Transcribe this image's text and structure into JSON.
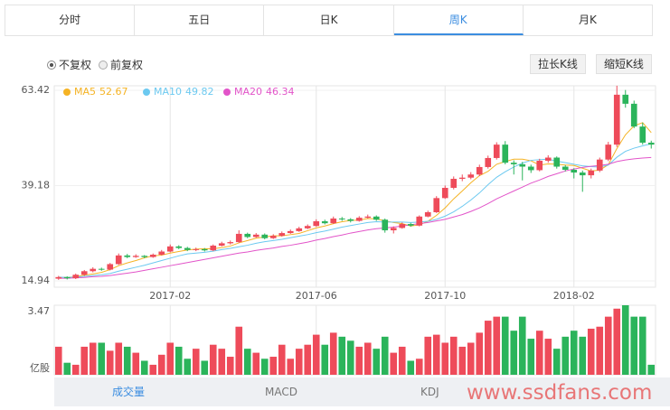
{
  "tabs": [
    "分时",
    "五日",
    "日K",
    "周K",
    "月K"
  ],
  "selected_tab": 3,
  "radios": [
    "不复权",
    "前复权"
  ],
  "selected_radio": 0,
  "buttons": [
    "拉长K线",
    "缩短K线"
  ],
  "bottom_tabs": [
    "成交量",
    "MACD",
    "KDJ"
  ],
  "selected_bottom_tab": 0,
  "watermark": "www.ssdfans.com",
  "chart_data": {
    "type": "candlestick",
    "up_color": "#ee4b5a",
    "down_color": "#2bb45b",
    "ylim": [
      13.33,
      64.57
    ],
    "yticks": [
      14.94,
      39.18,
      63.42
    ],
    "grid": true,
    "categories": [
      null,
      null,
      null,
      null,
      null,
      null,
      null,
      null,
      null,
      null,
      null,
      null,
      null,
      "2017-02",
      null,
      null,
      null,
      null,
      null,
      null,
      null,
      null,
      null,
      null,
      null,
      null,
      null,
      null,
      null,
      null,
      "2017-06",
      null,
      null,
      null,
      null,
      null,
      null,
      null,
      null,
      null,
      null,
      null,
      null,
      null,
      null,
      "2017-10",
      null,
      null,
      null,
      null,
      null,
      null,
      null,
      null,
      null,
      null,
      null,
      null,
      null,
      null,
      "2018-02",
      null,
      null,
      null,
      null,
      null,
      null,
      null,
      null,
      null
    ],
    "candles": [
      [
        15.5,
        16.2,
        15.2,
        15.9
      ],
      [
        15.9,
        16.1,
        15.3,
        15.6
      ],
      [
        15.6,
        16.8,
        15.4,
        16.5
      ],
      [
        16.5,
        17.7,
        16.2,
        17.4
      ],
      [
        17.4,
        18.4,
        17.1,
        18.0
      ],
      [
        18.0,
        18.3,
        17.5,
        17.8
      ],
      [
        17.8,
        19.5,
        17.6,
        19.2
      ],
      [
        19.2,
        21.9,
        19.0,
        21.4
      ],
      [
        21.4,
        21.8,
        20.7,
        21.0
      ],
      [
        21.0,
        21.7,
        20.8,
        21.3
      ],
      [
        21.3,
        21.5,
        20.7,
        21.0
      ],
      [
        21.0,
        21.9,
        20.8,
        21.6
      ],
      [
        21.6,
        22.8,
        21.4,
        22.4
      ],
      [
        22.4,
        24.2,
        22.2,
        23.7
      ],
      [
        23.7,
        24.0,
        23.0,
        23.3
      ],
      [
        23.3,
        23.6,
        22.5,
        22.8
      ],
      [
        22.8,
        23.4,
        22.5,
        23.0
      ],
      [
        23.0,
        23.3,
        22.4,
        22.7
      ],
      [
        22.7,
        24.2,
        22.5,
        23.9
      ],
      [
        23.9,
        24.9,
        23.7,
        24.5
      ],
      [
        24.5,
        25.2,
        24.2,
        24.8
      ],
      [
        24.8,
        27.8,
        24.6,
        26.9
      ],
      [
        26.9,
        27.2,
        25.8,
        26.1
      ],
      [
        26.1,
        27.1,
        25.9,
        26.7
      ],
      [
        26.7,
        27.0,
        25.5,
        25.8
      ],
      [
        25.8,
        26.8,
        25.6,
        26.4
      ],
      [
        26.4,
        27.5,
        26.2,
        27.1
      ],
      [
        27.1,
        28.0,
        26.9,
        27.6
      ],
      [
        27.6,
        28.7,
        27.4,
        28.3
      ],
      [
        28.3,
        29.3,
        28.1,
        28.9
      ],
      [
        28.9,
        30.6,
        28.7,
        30.1
      ],
      [
        30.1,
        30.5,
        29.3,
        29.6
      ],
      [
        29.6,
        31.3,
        29.4,
        30.8
      ],
      [
        30.8,
        31.2,
        30.2,
        30.6
      ],
      [
        30.6,
        30.9,
        29.8,
        30.2
      ],
      [
        30.2,
        31.4,
        30.0,
        31.0
      ],
      [
        31.0,
        31.8,
        30.8,
        31.3
      ],
      [
        31.3,
        31.6,
        30.2,
        30.5
      ],
      [
        30.5,
        30.8,
        27.2,
        27.8
      ],
      [
        27.8,
        28.8,
        27.0,
        28.4
      ],
      [
        28.4,
        29.8,
        28.2,
        29.4
      ],
      [
        29.4,
        29.7,
        28.7,
        29.0
      ],
      [
        29.0,
        31.6,
        28.8,
        31.3
      ],
      [
        31.3,
        32.8,
        31.1,
        32.4
      ],
      [
        32.4,
        36.5,
        32.2,
        36.0
      ],
      [
        36.0,
        39.2,
        35.8,
        38.6
      ],
      [
        38.6,
        41.5,
        38.2,
        40.9
      ],
      [
        40.9,
        42.0,
        40.3,
        41.2
      ],
      [
        41.2,
        42.6,
        40.8,
        42.0
      ],
      [
        42.0,
        44.5,
        41.6,
        43.9
      ],
      [
        43.9,
        46.8,
        43.5,
        46.2
      ],
      [
        46.2,
        50.2,
        45.8,
        49.6
      ],
      [
        49.6,
        50.5,
        44.6,
        45.0
      ],
      [
        45.0,
        45.6,
        42.0,
        44.6
      ],
      [
        44.6,
        45.2,
        40.5,
        44.0
      ],
      [
        44.0,
        44.5,
        42.4,
        43.1
      ],
      [
        43.1,
        46.0,
        42.8,
        45.5
      ],
      [
        45.5,
        46.9,
        45.0,
        46.3
      ],
      [
        46.3,
        46.6,
        43.5,
        44.0
      ],
      [
        44.0,
        44.4,
        42.8,
        43.2
      ],
      [
        43.2,
        43.6,
        41.0,
        42.5
      ],
      [
        42.5,
        43.0,
        37.6,
        41.8
      ],
      [
        41.8,
        43.5,
        41.0,
        43.0
      ],
      [
        43.0,
        46.3,
        42.6,
        45.8
      ],
      [
        45.8,
        50.3,
        45.4,
        49.6
      ],
      [
        49.6,
        64.6,
        49.0,
        62.3
      ],
      [
        62.3,
        63.5,
        59.0,
        60.0
      ],
      [
        60.0,
        60.8,
        53.8,
        54.2
      ],
      [
        54.2,
        55.2,
        49.6,
        50.1
      ],
      [
        50.1,
        50.6,
        48.6,
        49.6
      ]
    ],
    "series": [
      {
        "name": "MA5",
        "color": "#f5b324",
        "values": [
          15.9,
          15.8,
          16.0,
          16.4,
          16.7,
          17.1,
          17.8,
          18.8,
          19.5,
          20.1,
          20.8,
          21.3,
          21.5,
          22.0,
          22.4,
          22.8,
          23.0,
          23.1,
          23.1,
          23.4,
          23.8,
          24.6,
          25.2,
          25.8,
          26.1,
          26.4,
          26.4,
          26.7,
          27.0,
          27.7,
          28.4,
          28.9,
          29.5,
          30.0,
          30.3,
          30.4,
          30.8,
          30.7,
          30.2,
          29.8,
          29.5,
          28.9,
          29.2,
          30.1,
          31.6,
          33.5,
          35.8,
          37.8,
          39.9,
          41.7,
          42.8,
          44.6,
          45.3,
          45.9,
          45.9,
          45.5,
          44.4,
          44.7,
          44.6,
          44.4,
          44.3,
          43.6,
          42.9,
          43.1,
          44.5,
          48.6,
          52.1,
          54.4,
          55.2,
          52.67
        ]
      },
      {
        "name": "MA10",
        "color": "#6cc9f0",
        "values": [
          15.9,
          15.8,
          15.9,
          16.1,
          16.3,
          16.5,
          16.8,
          17.4,
          17.9,
          18.4,
          18.9,
          19.5,
          20.1,
          20.7,
          21.3,
          21.8,
          22.0,
          22.2,
          22.5,
          22.9,
          23.2,
          23.6,
          24.0,
          24.5,
          24.9,
          25.2,
          25.5,
          25.9,
          26.3,
          26.7,
          27.2,
          27.6,
          28.1,
          28.6,
          29.0,
          29.4,
          29.8,
          30.0,
          29.9,
          29.9,
          29.9,
          29.8,
          29.9,
          30.1,
          30.6,
          31.4,
          32.5,
          33.9,
          35.5,
          37.3,
          39.4,
          41.3,
          42.7,
          43.9,
          44.9,
          45.6,
          45.8,
          45.9,
          45.4,
          45.0,
          44.6,
          44.2,
          44.0,
          43.9,
          44.4,
          46.4,
          47.9,
          48.7,
          49.3,
          49.82
        ]
      },
      {
        "name": "MA20",
        "color": "#e254c9",
        "values": [
          15.6,
          15.6,
          15.7,
          15.8,
          16.0,
          16.1,
          16.3,
          16.6,
          16.9,
          17.2,
          17.6,
          18.0,
          18.4,
          18.8,
          19.2,
          19.6,
          20.0,
          20.4,
          20.8,
          21.2,
          21.6,
          22.0,
          22.3,
          22.7,
          23.0,
          23.3,
          23.7,
          24.0,
          24.4,
          24.8,
          25.3,
          25.7,
          26.2,
          26.6,
          27.1,
          27.5,
          27.9,
          28.2,
          28.4,
          28.6,
          28.9,
          29.2,
          29.5,
          29.8,
          30.2,
          30.6,
          31.2,
          31.8,
          32.6,
          33.5,
          34.6,
          35.8,
          36.8,
          37.8,
          38.8,
          39.8,
          40.6,
          41.5,
          42.2,
          42.9,
          43.4,
          43.8,
          44.1,
          44.3,
          44.6,
          45.3,
          45.7,
          46.0,
          46.2,
          46.34
        ]
      }
    ],
    "volume": {
      "unit_label": "亿股",
      "ylim": [
        0,
        3.47
      ],
      "yticks": [
        3.47
      ],
      "values": [
        1.4,
        0.6,
        0.5,
        1.4,
        1.6,
        1.6,
        1.2,
        1.6,
        1.4,
        1.1,
        0.7,
        0.5,
        1.0,
        1.6,
        1.4,
        0.8,
        1.3,
        0.7,
        1.5,
        1.3,
        0.9,
        2.4,
        1.3,
        1.1,
        0.8,
        0.9,
        1.5,
        0.8,
        1.3,
        1.5,
        2.0,
        1.5,
        2.1,
        1.9,
        1.7,
        1.4,
        1.6,
        1.3,
        1.9,
        1.1,
        1.4,
        0.7,
        0.8,
        1.9,
        2.0,
        1.6,
        1.9,
        1.4,
        1.6,
        2.1,
        2.7,
        2.9,
        2.9,
        2.2,
        2.9,
        1.8,
        2.2,
        1.8,
        1.3,
        1.9,
        2.2,
        1.9,
        2.3,
        2.4,
        2.9,
        3.3,
        3.47,
        2.9,
        2.9,
        0.5
      ]
    }
  }
}
